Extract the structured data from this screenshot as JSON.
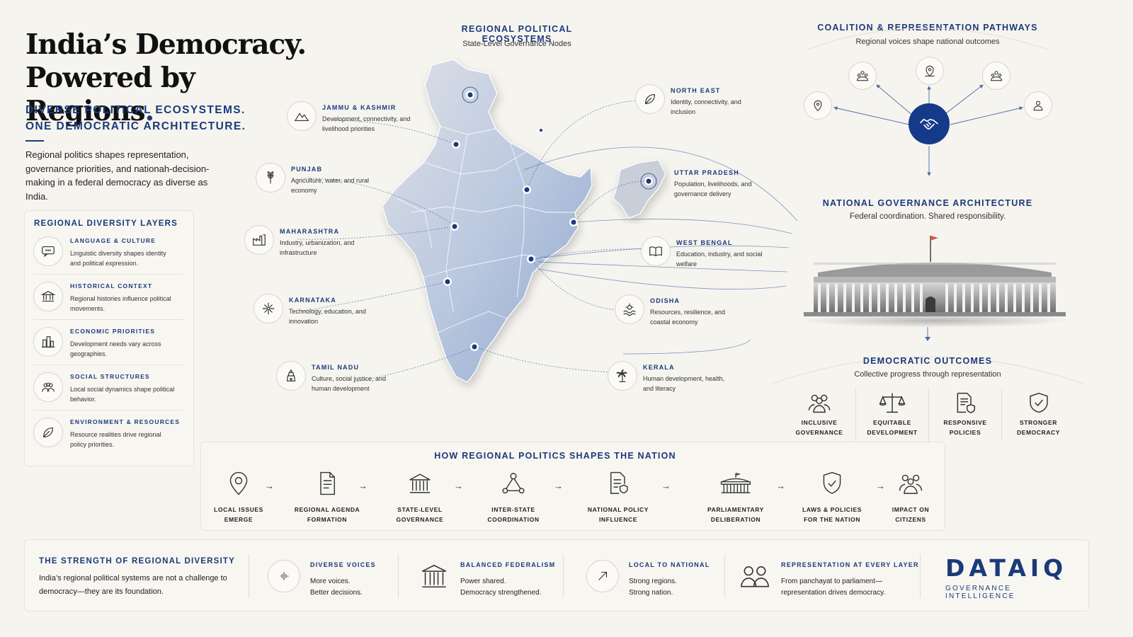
{
  "hero": {
    "title_line1": "India’s Democracy.",
    "title_line2": "Powered by Regions",
    "title_period": ".",
    "subtitle_line1": "DIVERSE POLITICAL ECOSYSTEMS.",
    "subtitle_line2": "ONE DEMOCRATIC ARCHITECTURE.",
    "body": "Regional politics shapes representation, governance priorities, and nationah-decision-making in a federal democracy as diverse as India."
  },
  "layers": {
    "title": "REGIONAL DIVERSITY LAYERS",
    "items": [
      {
        "title": "LANGUAGE & CULTURE",
        "desc": "Linguistic diversity shapes identity and political expression.",
        "icon": "speech-bubble-icon"
      },
      {
        "title": "HISTORICAL CONTEXT",
        "desc": "Regional histories influence political movements.",
        "icon": "institution-icon"
      },
      {
        "title": "ECONOMIC PRIORITIES",
        "desc": "Development needs vary across geographies.",
        "icon": "city-icon"
      },
      {
        "title": "SOCIAL STRUCTURES",
        "desc": "Local social dynamics shape political behavior.",
        "icon": "people-icon"
      },
      {
        "title": "ENVIRONMENT & RESOURCES",
        "desc": "Resource realities drive regional policy priorities.",
        "icon": "leaf-icon"
      }
    ]
  },
  "map": {
    "heading": "REGIONAL POLITICAL ECOSYSTEMS",
    "subheading": "State-Level Governance Nodes",
    "nodes": [
      {
        "name": "JAMMU & KASHMIR",
        "desc": "Development, connectivity, and livelihood priorities",
        "icon": "mountain-icon"
      },
      {
        "name": "PUNJAB",
        "desc": "Agriculture, water, and rural economy",
        "icon": "wheat-icon"
      },
      {
        "name": "MAHARASHTRA",
        "desc": "Industry, urbanization, and infrastructure",
        "icon": "factory-icon"
      },
      {
        "name": "KARNATAKA",
        "desc": "Technology, education, and innovation",
        "icon": "network-icon"
      },
      {
        "name": "TAMIL NADU",
        "desc": "Culture, social justice, and human development",
        "icon": "temple-icon"
      },
      {
        "name": "NORTH EAST",
        "desc": "Identity, connectivity, and inclusion",
        "icon": "leaf-icon"
      },
      {
        "name": "UTTAR PRADESH",
        "desc": "Population, livelihoods, and governance delivery",
        "icon": "target-icon"
      },
      {
        "name": "WEST BENGAL",
        "desc": "Education, industry, and social welfare",
        "icon": "book-icon"
      },
      {
        "name": "ODISHA",
        "desc": "Resources, resilience, and coastal economy",
        "icon": "sun-wave-icon"
      },
      {
        "name": "KERALA",
        "desc": "Human development, health, and literacy",
        "icon": "palm-tree-icon"
      }
    ]
  },
  "coalition": {
    "heading": "COALITION & REPRESENTATION PATHWAYS",
    "subheading": "Regional voices shape national outcomes"
  },
  "governance": {
    "heading": "NATIONAL GOVERNANCE ARCHITECTURE",
    "subheading": "Federal coordination. Shared responsibility."
  },
  "outcomes": {
    "heading": "DEMOCRATIC OUTCOMES",
    "subheading": "Collective progress through representation",
    "items": [
      {
        "line1": "INCLUSIVE",
        "line2": "GOVERNANCE",
        "icon": "group-icon"
      },
      {
        "line1": "EQUITABLE",
        "line2": "DEVELOPMENT",
        "icon": "scales-icon"
      },
      {
        "line1": "RESPONSIVE",
        "line2": "POLICIES",
        "icon": "document-shield-icon"
      },
      {
        "line1": "STRONGER",
        "line2": "DEMOCRACY",
        "icon": "shield-check-icon"
      }
    ]
  },
  "process": {
    "heading": "HOW REGIONAL POLITICS SHAPES THE NATION",
    "steps": [
      {
        "line1": "LOCAL ISSUES",
        "line2": "EMERGE",
        "icon": "map-pin-icon"
      },
      {
        "line1": "REGIONAL AGENDA",
        "line2": "FORMATION",
        "icon": "document-icon"
      },
      {
        "line1": "STATE-LEVEL",
        "line2": "GOVERNANCE",
        "icon": "institution-icon"
      },
      {
        "line1": "INTER-STATE",
        "line2": "COORDINATION",
        "icon": "triangle-network-icon"
      },
      {
        "line1": "NATIONAL POLICY",
        "line2": "INFLUENCE",
        "icon": "document-shield-icon"
      },
      {
        "line1": "PARLIAMENTARY",
        "line2": "DELIBERATION",
        "icon": "parliament-icon"
      },
      {
        "line1": "LAWS & POLICIES",
        "line2": "FOR THE NATION",
        "icon": "shield-check-icon"
      },
      {
        "line1": "IMPACT ON",
        "line2": "CITIZENS",
        "icon": "group-icon"
      }
    ]
  },
  "footer": {
    "title": "THE STRENGTH OF REGIONAL DIVERSITY",
    "body": "India’s regional political systems are not a challenge to democracy—they are its foundation.",
    "items": [
      {
        "title": "DIVERSE VOICES",
        "line1": "More voices.",
        "line2": "Better decisions.",
        "icon": "sound-wave-icon"
      },
      {
        "title": "BALANCED FEDERALISM",
        "line1": "Power shared.",
        "line2": "Democracy strengthened.",
        "icon": "pillars-icon"
      },
      {
        "title": "LOCAL TO NATIONAL",
        "line1": "Strong regions.",
        "line2": "Strong nation.",
        "icon": "arrow-up-right-icon"
      },
      {
        "title": "REPRESENTATION AT EVERY LAYER",
        "line1": "From panchayat to parliament—",
        "line2": "representation drives democracy.",
        "icon": "people-icon"
      }
    ],
    "brand_name": "DATAIQ",
    "brand_tagline": "GOVERNANCE INTELLIGENCE"
  },
  "colors": {
    "navy": "#1a3a7a",
    "hub": "#163a8a",
    "background": "#f6f4ef",
    "map_blue": "#8fa7cf",
    "map_grey": "#d9dbe0"
  }
}
